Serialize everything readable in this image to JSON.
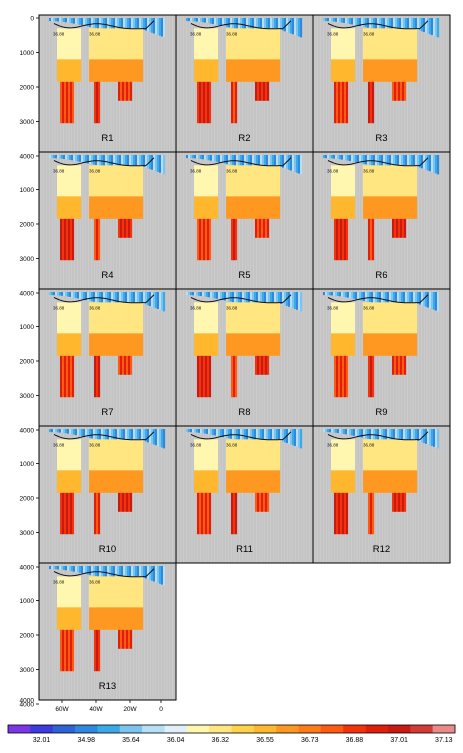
{
  "chart_data": {
    "type": "heatmap",
    "title": "",
    "xlabel": "",
    "ylabel": "",
    "panels": [
      "R1",
      "R2",
      "R3",
      "R4",
      "R5",
      "R6",
      "R7",
      "R8",
      "R9",
      "R10",
      "R11",
      "R12",
      "R13"
    ],
    "ylim": [
      0,
      4000
    ],
    "y_ticks": [
      0,
      1000,
      2000,
      3000,
      4000
    ],
    "x_ticks": [
      "60W",
      "40W",
      "20W",
      "0"
    ],
    "colorbar": {
      "tick_labels": [
        "32.01",
        "34.98",
        "35.64",
        "36.04",
        "36.32",
        "36.55",
        "36.73",
        "36.88",
        "37.01",
        "37.13"
      ],
      "colors": [
        "#7b36e8",
        "#3c39df",
        "#2e63d8",
        "#2f88de",
        "#39a9e8",
        "#7cc4ef",
        "#b6def5",
        "#dff0fa",
        "#fff6b0",
        "#ffe680",
        "#ffd24a",
        "#ffb72e",
        "#ff9820",
        "#ff7a19",
        "#ff5a12",
        "#f4330c",
        "#e01f0b",
        "#c81a10",
        "#d43b35",
        "#e88a8a"
      ]
    },
    "contour_labels": [
      "36.88",
      "36.88"
    ],
    "structure": {
      "surface_layer": {
        "depth": [
          0,
          300
        ],
        "value_range": [
          34.98,
          36.55
        ]
      },
      "upper_layer": {
        "depth": [
          300,
          1200
        ],
        "value_range": [
          36.73,
          36.88
        ]
      },
      "middle_layer": {
        "depth": [
          1200,
          1850
        ],
        "value_range": [
          36.88,
          37.01
        ]
      },
      "deep_columns": {
        "depth": [
          1850,
          3050
        ],
        "value_range": [
          37.01,
          37.13
        ]
      }
    }
  }
}
